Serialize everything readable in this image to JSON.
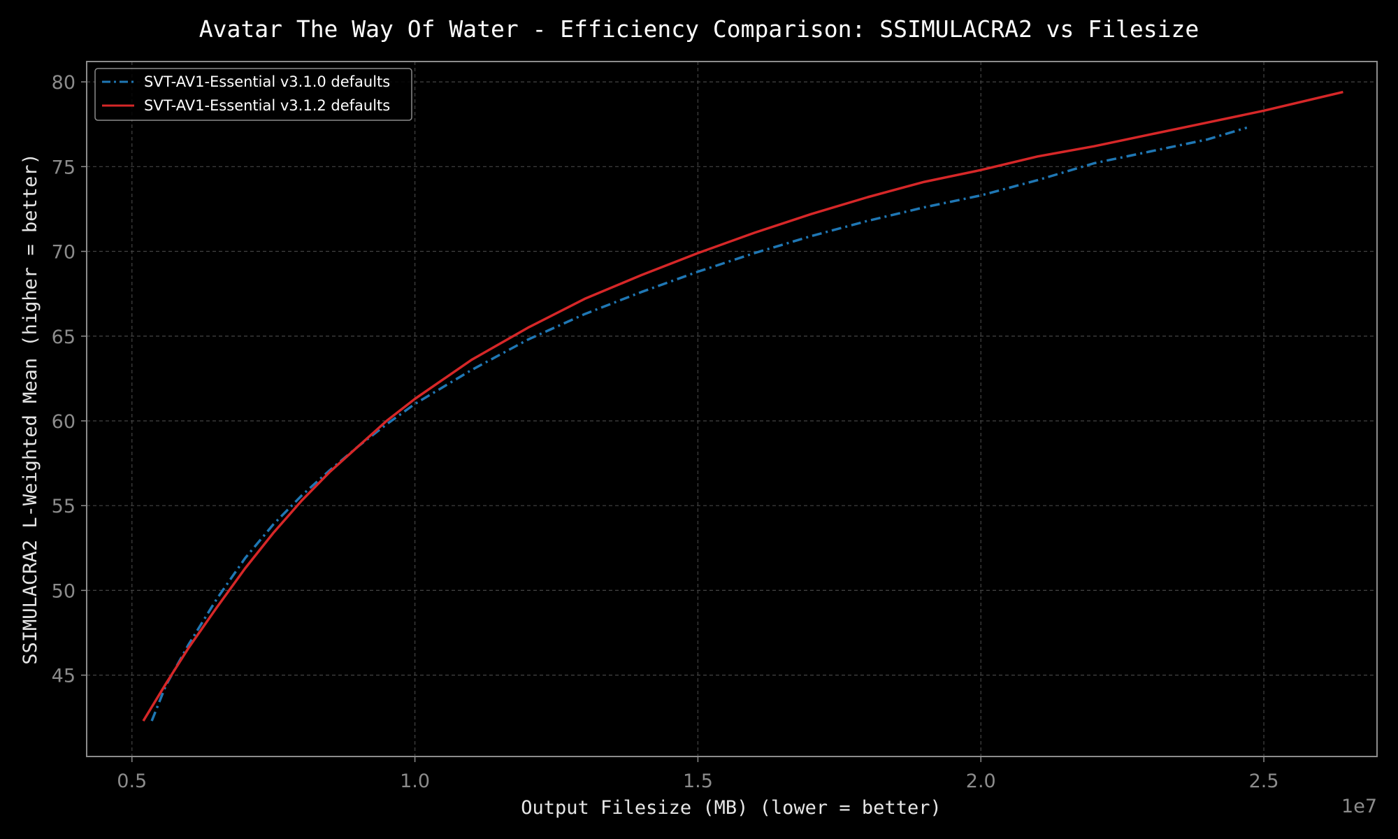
{
  "chart_data": {
    "type": "line",
    "title": "Avatar The Way Of Water - Efficiency Comparison: SSIMULACRA2 vs Filesize",
    "xlabel": "Output Filesize (MB) (lower = better)",
    "ylabel": "SSIMULACRA2 L-Weighted Mean (higher = better)",
    "x_offset_label": "1e7",
    "x_scale": 10000000,
    "xlim": [
      0.42,
      2.7
    ],
    "ylim": [
      40.2,
      81.2
    ],
    "x_ticks": [
      0.5,
      1.0,
      1.5,
      2.0,
      2.5
    ],
    "x_tick_labels": [
      "0.5",
      "1.0",
      "1.5",
      "2.0",
      "2.5"
    ],
    "y_ticks": [
      45,
      50,
      55,
      60,
      65,
      70,
      75,
      80
    ],
    "y_tick_labels": [
      "45",
      "50",
      "55",
      "60",
      "65",
      "70",
      "75",
      "80"
    ],
    "grid": true,
    "legend_position": "top-left",
    "series": [
      {
        "name": "SVT-AV1-Essential v3.1.0 defaults",
        "color": "#1f77b4",
        "style": "dash-dot",
        "x": [
          5350000,
          5600000,
          6000000,
          6500000,
          7000000,
          7500000,
          8000000,
          8500000,
          9000000,
          9500000,
          10000000,
          11000000,
          12000000,
          13000000,
          14000000,
          15000000,
          16000000,
          17000000,
          18000000,
          19000000,
          20000000,
          21000000,
          22000000,
          23000000,
          24000000,
          24700000
        ],
        "y": [
          42.3,
          44.4,
          46.8,
          49.5,
          51.9,
          53.9,
          55.6,
          57.1,
          58.5,
          59.8,
          61.0,
          63.0,
          64.8,
          66.3,
          67.6,
          68.8,
          69.9,
          70.9,
          71.8,
          72.6,
          73.3,
          74.2,
          75.2,
          75.9,
          76.6,
          77.3
        ]
      },
      {
        "name": "SVT-AV1-Essential v3.1.2 defaults",
        "color": "#d62728",
        "style": "solid",
        "x": [
          5200000,
          5600000,
          6000000,
          6500000,
          7000000,
          7500000,
          8000000,
          8500000,
          9000000,
          9500000,
          10000000,
          11000000,
          12000000,
          13000000,
          14000000,
          15000000,
          16000000,
          17000000,
          18000000,
          19000000,
          20000000,
          21000000,
          22000000,
          23000000,
          24000000,
          25000000,
          26400000
        ],
        "y": [
          42.3,
          44.5,
          46.6,
          49.0,
          51.3,
          53.4,
          55.3,
          57.0,
          58.5,
          60.0,
          61.3,
          63.6,
          65.5,
          67.2,
          68.6,
          69.9,
          71.1,
          72.2,
          73.2,
          74.1,
          74.8,
          75.6,
          76.2,
          76.9,
          77.6,
          78.3,
          79.4
        ]
      }
    ]
  },
  "style": {
    "background": "#000000",
    "axes_color": "#8c8c8c",
    "grid_color": "#444444",
    "title_color": "#ffffff",
    "label_color": "#e6e6e6",
    "tick_color": "#8c8c8c",
    "legend_border": "#8c8c8c"
  }
}
